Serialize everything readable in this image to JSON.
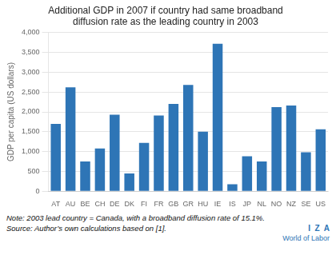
{
  "chart_data": {
    "type": "bar",
    "title": "Additional GDP in 2007 if country had same broadband\ndiffusion rate as the leading country in 2003",
    "ylabel": "GDP per capita (US dollars)",
    "categories": [
      "AT",
      "AU",
      "BE",
      "CH",
      "DE",
      "DK",
      "FI",
      "FR",
      "GB",
      "GR",
      "HU",
      "IE",
      "IS",
      "JP",
      "NL",
      "NO",
      "NZ",
      "SE",
      "US"
    ],
    "values": [
      1700,
      2620,
      750,
      1080,
      1930,
      450,
      1220,
      1910,
      2200,
      2680,
      1500,
      3720,
      175,
      880,
      750,
      2120,
      2160,
      980,
      1560
    ],
    "color": "#2E75B6",
    "ylim": [
      0,
      4000
    ],
    "yticks": [
      0,
      500,
      {
        "value": 1000,
        "label": "1,000"
      },
      {
        "value": 1500,
        "label": "1,500"
      },
      {
        "value": 2000,
        "label": "2,000"
      },
      {
        "value": 2500,
        "label": "2,500"
      },
      {
        "value": 3000,
        "label": "3,000"
      },
      {
        "value": 3500,
        "label": "3,500"
      },
      {
        "value": 4000,
        "label": "4,000"
      }
    ],
    "grid": true,
    "annotations": [
      "Note: 2003 lead country = Canada, with a broadband diffusion rate of 15.1%.",
      "Source: Author’s own calculations based on [1].",
      "I  Z  A",
      "World of Labor"
    ]
  }
}
